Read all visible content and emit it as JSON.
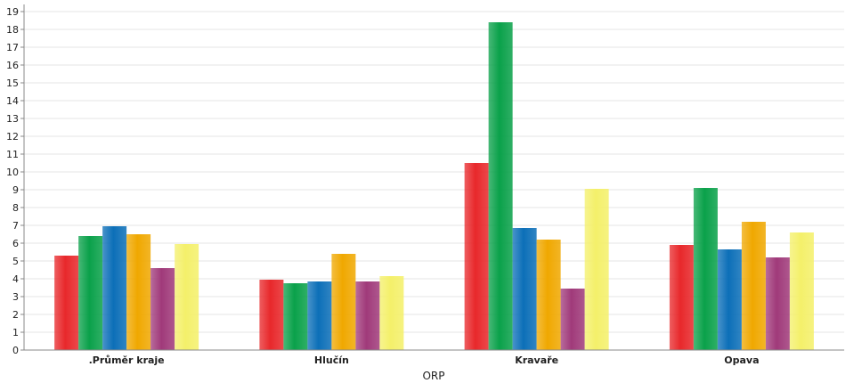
{
  "chart_data": {
    "type": "bar",
    "xlabel": "ORP",
    "ylabel": "",
    "ylim": [
      0,
      19
    ],
    "ytick_step": 1,
    "grid": true,
    "legend": "none",
    "categories": [
      ".Průměr kraje",
      "Hlučín",
      "Kravaře",
      "Opava"
    ],
    "series": [
      {
        "color": "#e8282b",
        "values": [
          5.3,
          3.95,
          10.5,
          5.9
        ]
      },
      {
        "color": "#0aa14a",
        "values": [
          6.4,
          3.75,
          18.4,
          9.1
        ]
      },
      {
        "color": "#0c6fb8",
        "values": [
          6.95,
          3.85,
          6.85,
          5.65
        ]
      },
      {
        "color": "#f0a800",
        "values": [
          6.5,
          5.4,
          6.2,
          7.2
        ]
      },
      {
        "color": "#a03a7a",
        "values": [
          4.6,
          3.85,
          3.45,
          5.2
        ]
      },
      {
        "color": "#f4f06a",
        "values": [
          5.95,
          4.15,
          9.05,
          6.6
        ]
      }
    ]
  }
}
